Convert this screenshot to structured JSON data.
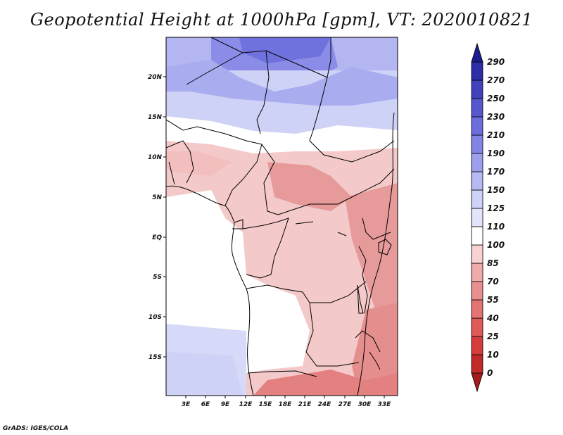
{
  "title": "Geopotential Height at 1000hPa [gpm], VT: 2020010821",
  "credit": "GrADS: IGES/COLA",
  "map": {
    "lon_range": [
      0,
      35
    ],
    "lat_range": [
      -20,
      25
    ],
    "lon_ticks": [
      "3E",
      "6E",
      "9E",
      "12E",
      "15E",
      "18E",
      "21E",
      "24E",
      "27E",
      "30E",
      "33E"
    ],
    "lat_ticks": [
      "20N",
      "15N",
      "10N",
      "5N",
      "EQ",
      "5S",
      "10S",
      "15S"
    ]
  },
  "colorbar": {
    "labels": [
      "0",
      "10",
      "25",
      "40",
      "55",
      "70",
      "85",
      "100",
      "110",
      "125",
      "150",
      "170",
      "190",
      "210",
      "230",
      "250",
      "270",
      "290"
    ],
    "colors": [
      "#a51c1c",
      "#c22a2a",
      "#d53d3d",
      "#e05a5a",
      "#e37474",
      "#e89090",
      "#f0aaaa",
      "#f8d2d2",
      "#ffffff",
      "#e2e4fb",
      "#cfd2f7",
      "#b6b9f2",
      "#9d9fec",
      "#8385e5",
      "#6c6edb",
      "#5656cd",
      "#4141bc",
      "#2d2da6",
      "#1c1c8c"
    ]
  }
}
